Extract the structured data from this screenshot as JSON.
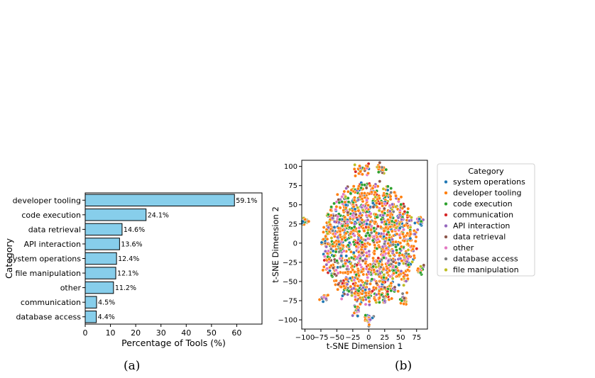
{
  "chart_data": [
    {
      "type": "bar",
      "orientation": "horizontal",
      "categories": [
        "developer tooling",
        "code execution",
        "data retrieval",
        "API interaction",
        "system operations",
        "file manipulation",
        "other",
        "communication",
        "database access"
      ],
      "values": [
        59.1,
        24.1,
        14.6,
        13.6,
        12.4,
        12.1,
        11.2,
        4.5,
        4.4
      ],
      "data_labels": [
        "59.1%",
        "24.1%",
        "14.6%",
        "13.6%",
        "12.4%",
        "12.1%",
        "11.2%",
        "4.5%",
        "4.4%"
      ],
      "xlabel": "Percentage of Tools (%)",
      "ylabel": "Category",
      "xlim": [
        0,
        70
      ],
      "xticks": [
        0,
        10,
        20,
        30,
        40,
        50,
        60
      ],
      "bar_color": "#87ceeb",
      "caption": "(a)"
    },
    {
      "type": "scatter",
      "xlabel": "t-SNE Dimension 1",
      "ylabel": "t-SNE Dimension 2",
      "xlim": [
        -105,
        92
      ],
      "ylim": [
        -112,
        108
      ],
      "xticks": [
        -100,
        -75,
        -50,
        -25,
        0,
        25,
        50,
        75
      ],
      "yticks": [
        100,
        75,
        50,
        25,
        0,
        -25,
        -50,
        -75,
        -100
      ],
      "legend_title": "Category",
      "legend_position": "outside-right",
      "series": [
        {
          "name": "system operations",
          "color": "#1f77b4"
        },
        {
          "name": "developer tooling",
          "color": "#ff7f0e"
        },
        {
          "name": "code execution",
          "color": "#2ca02c"
        },
        {
          "name": "communication",
          "color": "#d62728"
        },
        {
          "name": "API interaction",
          "color": "#9467bd"
        },
        {
          "name": "data retrieval",
          "color": "#8c564b"
        },
        {
          "name": "other",
          "color": "#e377c2"
        },
        {
          "name": "database access",
          "color": "#7f7f7f"
        },
        {
          "name": "file manipulation",
          "color": "#bcbd22"
        }
      ],
      "caption": "(b)"
    }
  ]
}
